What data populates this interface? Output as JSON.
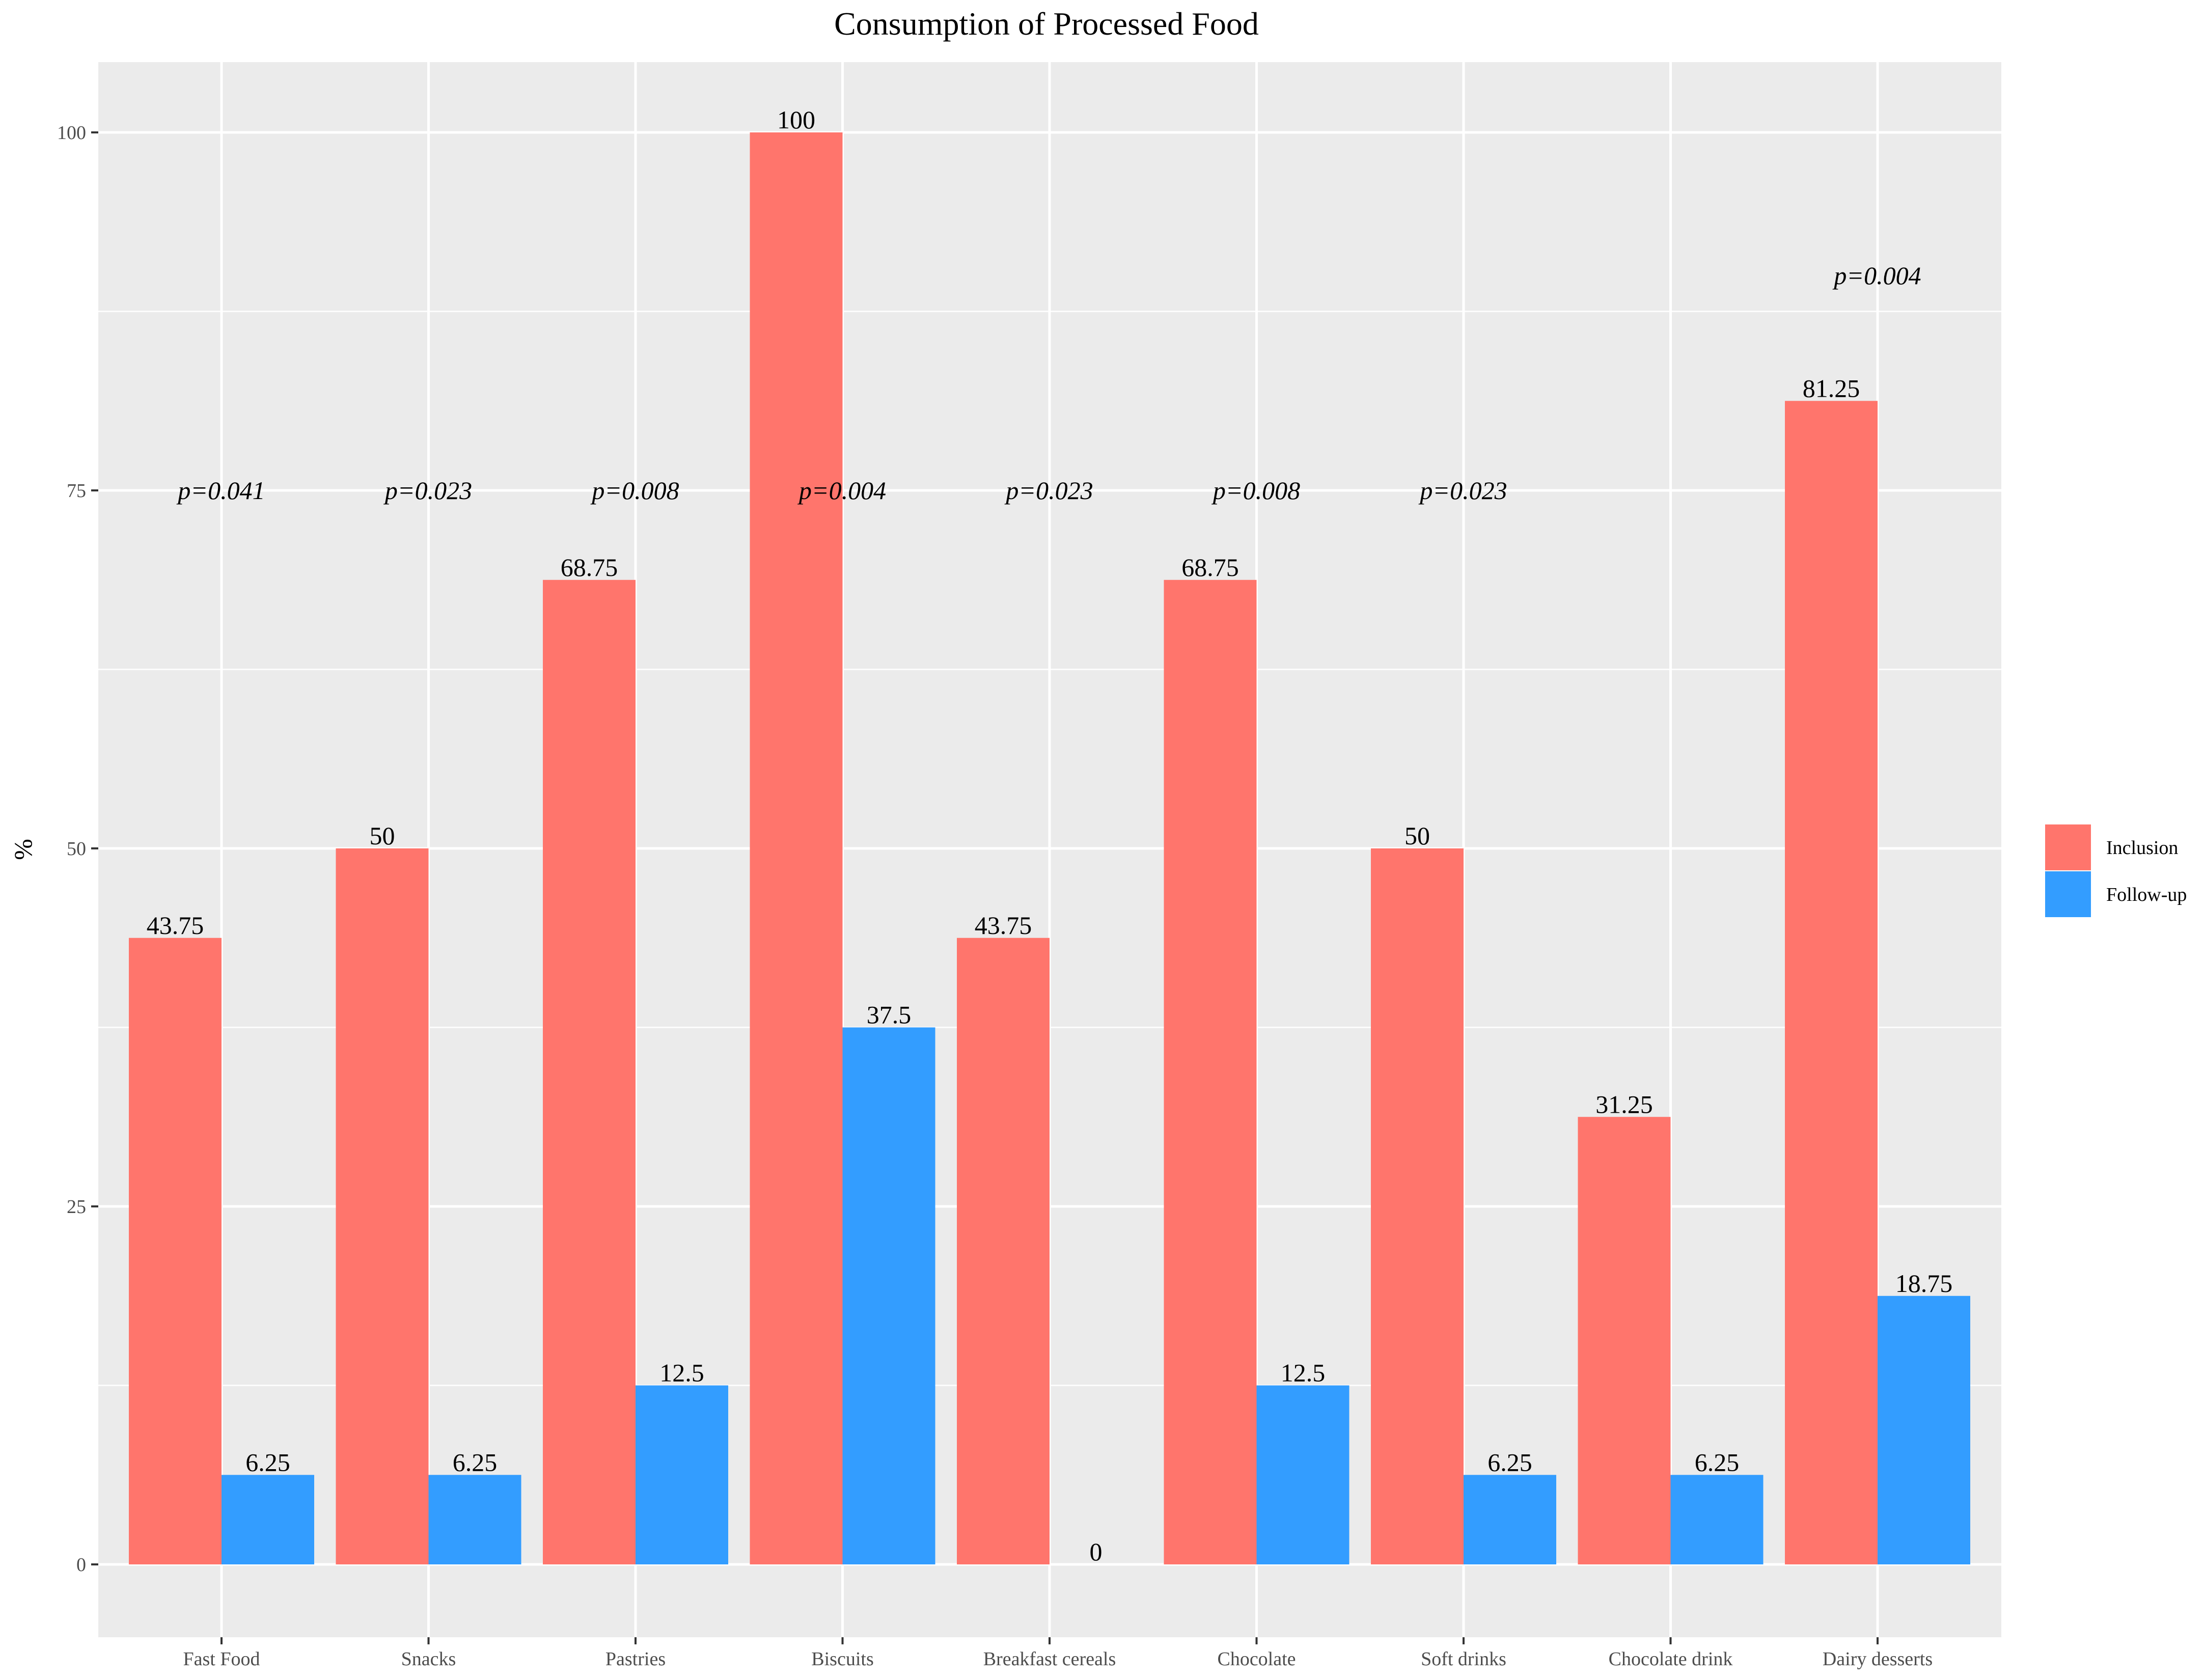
{
  "chart_data": {
    "type": "bar",
    "title": "Consumption of Processed Food",
    "xlabel": "",
    "ylabel": "%",
    "ylim": [
      -5,
      105
    ],
    "yticks": [
      0,
      25,
      50,
      75,
      100
    ],
    "grid": true,
    "legend_position": "right",
    "categories": [
      "Fast Food",
      "Snacks",
      "Pastries",
      "Biscuits",
      "Breakfast cereals",
      "Chocolate",
      "Soft drinks",
      "Chocolate drink",
      "Dairy desserts"
    ],
    "series": [
      {
        "name": "Inclusion",
        "color": "#FF756C",
        "values": [
          43.75,
          50,
          68.75,
          100,
          43.75,
          68.75,
          50,
          31.25,
          81.25
        ],
        "labels": [
          "43.75",
          "50",
          "68.75",
          "100",
          "43.75",
          "68.75",
          "50",
          "31.25",
          "81.25"
        ]
      },
      {
        "name": "Follow-up",
        "color": "#339DFF",
        "values": [
          6.25,
          6.25,
          12.5,
          37.5,
          0,
          12.5,
          6.25,
          6.25,
          18.75
        ],
        "labels": [
          "6.25",
          "6.25",
          "12.5",
          "37.5",
          "0",
          "12.5",
          "6.25",
          "6.25",
          "18.75"
        ]
      }
    ],
    "annotations": [
      {
        "category": "Fast Food",
        "text": "p=0.041",
        "y": 75
      },
      {
        "category": "Snacks",
        "text": "p=0.023",
        "y": 75
      },
      {
        "category": "Pastries",
        "text": "p=0.008",
        "y": 75
      },
      {
        "category": "Biscuits",
        "text": "p=0.004",
        "y": 75
      },
      {
        "category": "Breakfast cereals",
        "text": "p=0.023",
        "y": 75
      },
      {
        "category": "Chocolate",
        "text": "p=0.008",
        "y": 75
      },
      {
        "category": "Soft drinks",
        "text": "p=0.023",
        "y": 75
      },
      {
        "category": "Dairy desserts",
        "text": "p=0.004",
        "y": 90
      }
    ],
    "panel_background": "#EBEBEB",
    "gridline_color": "#FFFFFF"
  }
}
